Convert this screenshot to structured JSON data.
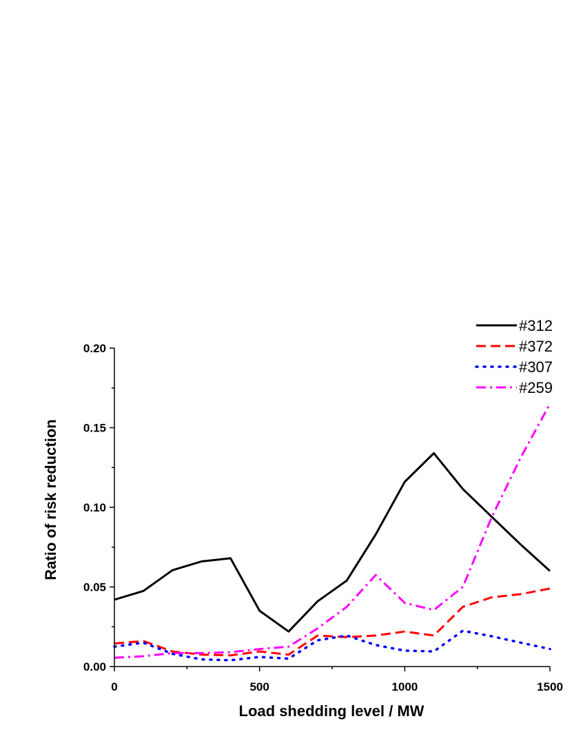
{
  "chart_data": {
    "type": "line",
    "xlabel": "Load shedding level / MW",
    "ylabel": "Ratio of risk reduction",
    "xlim": [
      0,
      1500
    ],
    "ylim": [
      0,
      0.2
    ],
    "x_ticks": [
      0,
      500,
      1000,
      1500
    ],
    "x_tick_labels": [
      "0",
      "500",
      "1000",
      "1500"
    ],
    "y_ticks": [
      0,
      0.05,
      0.1,
      0.15,
      0.2
    ],
    "y_tick_labels": [
      "0.00",
      "0.05",
      "0.10",
      "0.15",
      "0.20"
    ],
    "grid": false,
    "legend_position": "top-right",
    "x": [
      0,
      100,
      200,
      300,
      400,
      500,
      600,
      700,
      800,
      900,
      1000,
      1100,
      1200,
      1300,
      1400,
      1500
    ],
    "series": [
      {
        "name": "#312",
        "color": "#000000",
        "dash": "solid",
        "values": [
          0.042,
          0.0475,
          0.0605,
          0.066,
          0.068,
          0.035,
          0.022,
          0.041,
          0.054,
          0.083,
          0.116,
          0.134,
          0.1115,
          0.094,
          0.0765,
          0.06
        ]
      },
      {
        "name": "#372",
        "color": "#ff0000",
        "dash": "dashed",
        "values": [
          0.0145,
          0.016,
          0.0095,
          0.0075,
          0.007,
          0.0095,
          0.0075,
          0.0195,
          0.0185,
          0.0195,
          0.022,
          0.0195,
          0.0375,
          0.0435,
          0.0455,
          0.049
        ]
      },
      {
        "name": "#307",
        "color": "#0000ff",
        "dash": "dotted",
        "values": [
          0.0125,
          0.015,
          0.008,
          0.0045,
          0.004,
          0.006,
          0.005,
          0.0165,
          0.0195,
          0.0135,
          0.01,
          0.0095,
          0.0225,
          0.019,
          0.015,
          0.011
        ]
      },
      {
        "name": "#259",
        "color": "#ff00ff",
        "dash": "dashdot",
        "values": [
          0.0055,
          0.0065,
          0.0085,
          0.0085,
          0.009,
          0.011,
          0.0125,
          0.024,
          0.0375,
          0.0575,
          0.04,
          0.0355,
          0.05,
          0.094,
          0.1315,
          0.165
        ]
      }
    ]
  }
}
